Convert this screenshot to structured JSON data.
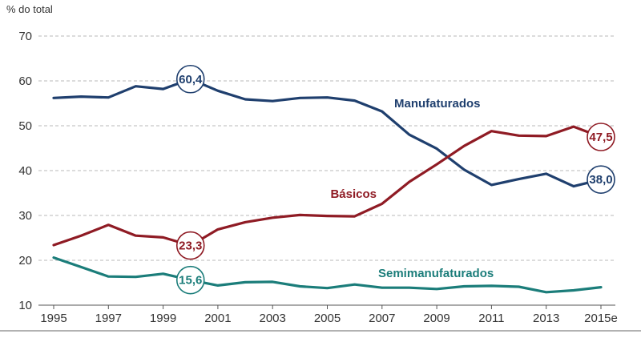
{
  "chart_data": {
    "type": "line",
    "ylabel": "% do total",
    "xlabel": "",
    "ylim": [
      10,
      70
    ],
    "yticks": [
      "10",
      "20",
      "30",
      "40",
      "50",
      "60",
      "70"
    ],
    "x": [
      1995,
      1996,
      1997,
      1998,
      1999,
      2000,
      2001,
      2002,
      2003,
      2004,
      2005,
      2006,
      2007,
      2008,
      2009,
      2010,
      2011,
      2012,
      2013,
      2014,
      2015
    ],
    "xtick_labels": [
      "1995",
      "1997",
      "1999",
      "2001",
      "2003",
      "2005",
      "2007",
      "2009",
      "2011",
      "2013",
      "2015e"
    ],
    "grid": "horizontal-dashed",
    "series": [
      {
        "name": "Manufaturados",
        "color": "#1f3f6e",
        "values": [
          56.2,
          56.5,
          56.3,
          58.8,
          58.2,
          60.4,
          57.8,
          55.9,
          55.5,
          56.2,
          56.3,
          55.6,
          53.2,
          48.0,
          44.9,
          40.2,
          36.8,
          38.1,
          39.3,
          36.5,
          38.0
        ],
        "callout": {
          "index": 5,
          "text": "60,4"
        }
      },
      {
        "name": "Básicos",
        "color": "#8f1b24",
        "values": [
          23.4,
          25.5,
          27.9,
          25.5,
          25.1,
          23.3,
          26.9,
          28.5,
          29.5,
          30.1,
          29.9,
          29.8,
          32.6,
          37.5,
          41.4,
          45.5,
          48.8,
          47.8,
          47.7,
          49.8,
          47.5
        ],
        "callout": {
          "index": 20,
          "text": "47,5"
        }
      },
      {
        "name": "Semimanufaturados",
        "color": "#1b7d7a",
        "values": [
          20.6,
          18.5,
          16.4,
          16.3,
          17.0,
          15.6,
          14.4,
          15.1,
          15.2,
          14.2,
          13.8,
          14.6,
          13.9,
          13.9,
          13.6,
          14.2,
          14.3,
          14.1,
          12.9,
          13.3,
          14.0
        ],
        "callout": {
          "index": 5,
          "text": "15,6"
        }
      }
    ],
    "extra_callouts": [
      {
        "series": "Manufaturados",
        "index": 20,
        "text": "38,0"
      },
      {
        "series": "Básicos",
        "index": 5,
        "text": "23,3"
      }
    ]
  }
}
